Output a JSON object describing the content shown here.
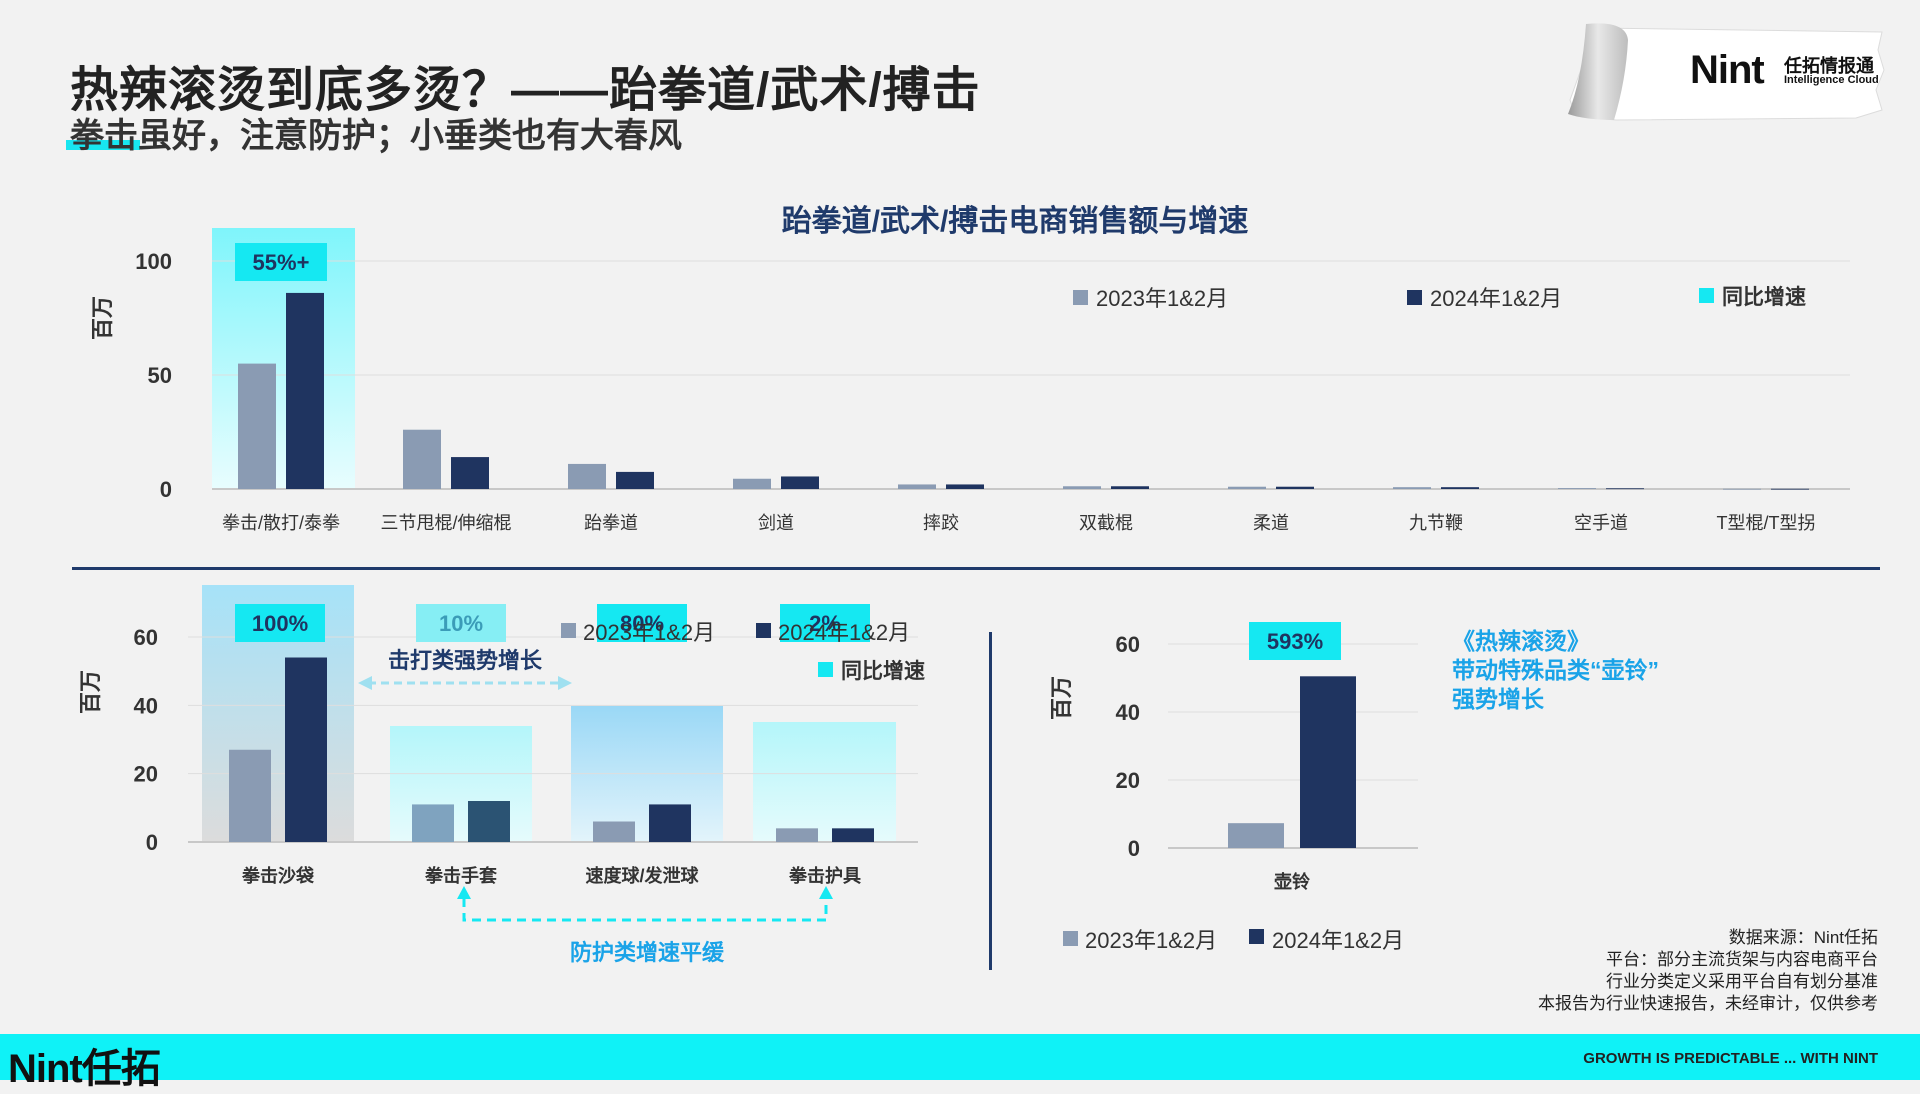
{
  "header": {
    "title": "热辣滚烫到底多烫？——跆拳道/武术/搏击",
    "subtitle": "拳击虽好，注意防护；小垂类也有大春风"
  },
  "logo": {
    "brand": "Nint",
    "cn": "任拓情报通",
    "en": "Intelligence Cloud"
  },
  "legend": {
    "s2023": "2023年1&2月",
    "s2024": "2024年1&2月",
    "growth": "同比增速"
  },
  "colors": {
    "s2023": "#8a9bb3",
    "s2024": "#1f3460",
    "growth": "#15e8f2",
    "accent_text": "#1aa3e8"
  },
  "annotations": {
    "strike_growth": "击打类强势增长",
    "protect_growth": "防护类增速平缓",
    "kettlebell_note_l1": "《热辣滚烫》",
    "kettlebell_note_l2": "带动特殊品类“壶铃”",
    "kettlebell_note_l3": "强势增长"
  },
  "chart_data": [
    {
      "type": "bar",
      "title": "跆拳道/武术/搏击电商销售额与增速",
      "ylabel": "百万",
      "ylim": [
        0,
        100
      ],
      "yticks": [
        "0",
        "50",
        "100"
      ],
      "categories": [
        "拳击/散打/泰拳",
        "三节甩棍/伸缩棍",
        "跆拳道",
        "剑道",
        "摔跤",
        "双截棍",
        "柔道",
        "九节鞭",
        "空手道",
        "T型棍/T型拐"
      ],
      "series": [
        {
          "name": "2023年1&2月",
          "values": [
            55,
            26,
            11,
            4.5,
            2,
            1.2,
            1,
            0.8,
            0.4,
            0.1
          ]
        },
        {
          "name": "2024年1&2月",
          "values": [
            86,
            14,
            7.5,
            5.5,
            2,
            1.2,
            1,
            0.8,
            0.3,
            0.1
          ]
        }
      ],
      "growth_labels": [
        "55%+",
        "",
        "",
        "",
        "",
        "",
        "",
        "",
        "",
        ""
      ]
    },
    {
      "type": "bar",
      "ylabel": "百万",
      "ylim": [
        0,
        60
      ],
      "yticks": [
        "0",
        "20",
        "40",
        "60"
      ],
      "categories": [
        "拳击沙袋",
        "拳击手套",
        "速度球/发泄球",
        "拳击护具"
      ],
      "series": [
        {
          "name": "2023年1&2月",
          "values": [
            27,
            11,
            6,
            4
          ]
        },
        {
          "name": "2024年1&2月",
          "values": [
            54,
            12,
            11,
            4
          ]
        }
      ],
      "growth_labels": [
        "100%",
        "10%",
        "80%",
        "2%"
      ]
    },
    {
      "type": "bar",
      "ylabel": "百万",
      "ylim": [
        0,
        60
      ],
      "yticks": [
        "0",
        "20",
        "40",
        "60"
      ],
      "categories": [
        "壶铃"
      ],
      "series": [
        {
          "name": "2023年1&2月",
          "values": [
            7.3
          ]
        },
        {
          "name": "2024年1&2月",
          "values": [
            50.5
          ]
        }
      ],
      "growth_labels": [
        "593%"
      ]
    }
  ],
  "source": {
    "line1": "数据来源：Nint任拓",
    "line2": "平台：部分主流货架与内容电商平台",
    "line3": "行业分类定义采用平台自有划分基准",
    "line4": "本报告为行业快速报告，未经审计，仅供参考"
  },
  "footer": {
    "logo": "Nint任拓",
    "slogan": "GROWTH IS PREDICTABLE ... WITH NINT"
  }
}
